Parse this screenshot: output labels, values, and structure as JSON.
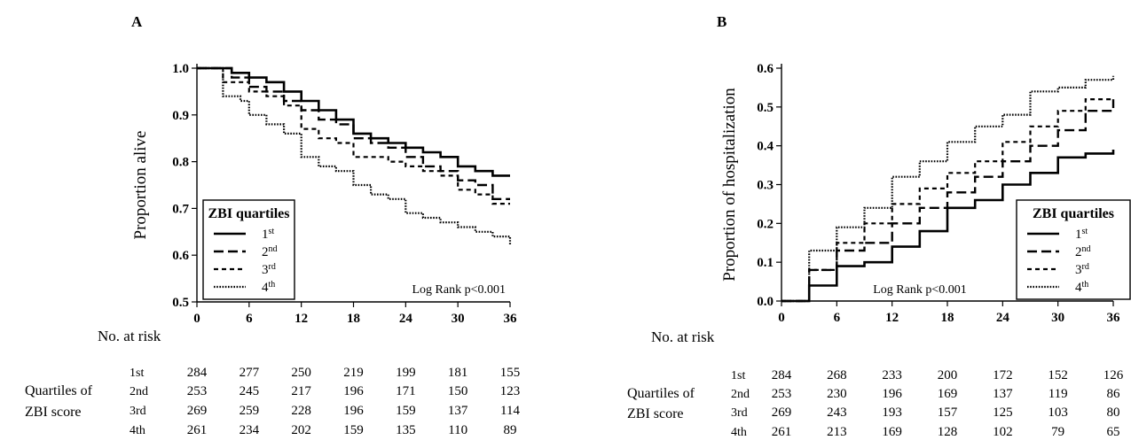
{
  "chart_data": [
    {
      "panel_label": "A",
      "type": "line",
      "step": true,
      "ylabel": "Proportion alive",
      "xlabel": "",
      "xlim": [
        0,
        36
      ],
      "ylim": [
        0.5,
        1.0
      ],
      "xticks": [
        "0",
        "6",
        "12",
        "18",
        "24",
        "30",
        "36"
      ],
      "yticks": [
        "0.5",
        "0.6",
        "0.7",
        "0.8",
        "0.9",
        "1.0"
      ],
      "legend": {
        "title": "ZBI quartiles",
        "position": "bottom-left",
        "entries": [
          "1st",
          "2nd",
          "3rd",
          "4th"
        ]
      },
      "annotation": "Log Rank p<0.001",
      "series": [
        {
          "name": "1st",
          "style": "solid",
          "x": [
            0,
            3,
            4,
            6,
            8,
            10,
            12,
            14,
            16,
            18,
            20,
            22,
            24,
            26,
            28,
            30,
            32,
            34,
            36
          ],
          "y": [
            1.0,
            1.0,
            0.99,
            0.98,
            0.97,
            0.95,
            0.93,
            0.91,
            0.89,
            0.86,
            0.85,
            0.84,
            0.83,
            0.82,
            0.81,
            0.79,
            0.78,
            0.77,
            0.77
          ]
        },
        {
          "name": "2nd",
          "style": "dashed",
          "x": [
            0,
            3,
            4,
            6,
            8,
            10,
            12,
            14,
            16,
            18,
            20,
            22,
            24,
            26,
            28,
            30,
            32,
            34,
            36
          ],
          "y": [
            1.0,
            1.0,
            0.98,
            0.96,
            0.95,
            0.93,
            0.91,
            0.89,
            0.88,
            0.85,
            0.84,
            0.83,
            0.81,
            0.79,
            0.78,
            0.76,
            0.75,
            0.72,
            0.72
          ]
        },
        {
          "name": "3rd",
          "style": "short-dashed",
          "x": [
            0,
            3,
            6,
            8,
            10,
            12,
            14,
            16,
            18,
            22,
            24,
            26,
            28,
            30,
            32,
            34,
            36
          ],
          "y": [
            1.0,
            0.97,
            0.95,
            0.94,
            0.92,
            0.87,
            0.85,
            0.84,
            0.81,
            0.8,
            0.79,
            0.78,
            0.77,
            0.74,
            0.73,
            0.71,
            0.71
          ]
        },
        {
          "name": "4th",
          "style": "dotted",
          "x": [
            0,
            3,
            5,
            6,
            8,
            10,
            12,
            14,
            16,
            18,
            20,
            22,
            24,
            26,
            28,
            30,
            32,
            34,
            36
          ],
          "y": [
            1.0,
            0.94,
            0.93,
            0.9,
            0.88,
            0.86,
            0.81,
            0.79,
            0.78,
            0.75,
            0.73,
            0.72,
            0.69,
            0.68,
            0.67,
            0.66,
            0.65,
            0.64,
            0.62
          ]
        }
      ],
      "risk_table": {
        "heading": "No. at risk",
        "group_label": [
          "Quartiles of",
          "ZBI score"
        ],
        "rows": [
          {
            "label": "1st",
            "values": [
              "284",
              "277",
              "250",
              "219",
              "199",
              "181",
              "155"
            ]
          },
          {
            "label": "2nd",
            "values": [
              "253",
              "245",
              "217",
              "196",
              "171",
              "150",
              "123"
            ]
          },
          {
            "label": "3rd",
            "values": [
              "269",
              "259",
              "228",
              "196",
              "159",
              "137",
              "114"
            ]
          },
          {
            "label": "4th",
            "values": [
              "261",
              "234",
              "202",
              "159",
              "135",
              "110",
              "89"
            ]
          }
        ]
      }
    },
    {
      "panel_label": "B",
      "type": "line",
      "step": true,
      "ylabel": "Proportion of hospitalization",
      "xlabel": "",
      "xlim": [
        0,
        36
      ],
      "ylim": [
        0.0,
        0.6
      ],
      "xticks": [
        "0",
        "6",
        "12",
        "18",
        "24",
        "30",
        "36"
      ],
      "yticks": [
        "0.0",
        "0.1",
        "0.2",
        "0.3",
        "0.4",
        "0.5",
        "0.6"
      ],
      "legend": {
        "title": "ZBI quartiles",
        "position": "bottom-right",
        "entries": [
          "1st",
          "2nd",
          "3rd",
          "4th"
        ]
      },
      "annotation": "Log Rank p<0.001",
      "series": [
        {
          "name": "1st",
          "style": "solid",
          "x": [
            0,
            3,
            6,
            9,
            12,
            15,
            18,
            21,
            24,
            27,
            30,
            33,
            36
          ],
          "y": [
            0.0,
            0.04,
            0.09,
            0.1,
            0.14,
            0.18,
            0.24,
            0.26,
            0.3,
            0.33,
            0.37,
            0.38,
            0.39
          ]
        },
        {
          "name": "2nd",
          "style": "dashed",
          "x": [
            0,
            3,
            6,
            9,
            12,
            15,
            18,
            21,
            24,
            27,
            30,
            33,
            36
          ],
          "y": [
            0.0,
            0.08,
            0.13,
            0.15,
            0.2,
            0.24,
            0.28,
            0.32,
            0.36,
            0.4,
            0.44,
            0.49,
            0.52
          ]
        },
        {
          "name": "3rd",
          "style": "short-dashed",
          "x": [
            0,
            3,
            6,
            9,
            12,
            15,
            18,
            21,
            24,
            27,
            30,
            33,
            36
          ],
          "y": [
            0.0,
            0.08,
            0.15,
            0.2,
            0.25,
            0.29,
            0.33,
            0.36,
            0.41,
            0.45,
            0.49,
            0.52,
            0.52
          ]
        },
        {
          "name": "4th",
          "style": "dotted",
          "x": [
            0,
            3,
            6,
            9,
            12,
            15,
            18,
            21,
            24,
            27,
            30,
            33,
            36
          ],
          "y": [
            0.0,
            0.13,
            0.19,
            0.24,
            0.32,
            0.36,
            0.41,
            0.45,
            0.48,
            0.54,
            0.55,
            0.57,
            0.58
          ]
        }
      ],
      "risk_table": {
        "heading": "No. at risk",
        "group_label": [
          "Quartiles of",
          "ZBI score"
        ],
        "rows": [
          {
            "label": "1st",
            "values": [
              "284",
              "268",
              "233",
              "200",
              "172",
              "152",
              "126"
            ]
          },
          {
            "label": "2nd",
            "values": [
              "253",
              "230",
              "196",
              "169",
              "137",
              "119",
              "86"
            ]
          },
          {
            "label": "3rd",
            "values": [
              "269",
              "243",
              "193",
              "157",
              "125",
              "103",
              "80"
            ]
          },
          {
            "label": "4th",
            "values": [
              "261",
              "213",
              "169",
              "128",
              "102",
              "79",
              "65"
            ]
          }
        ]
      }
    }
  ]
}
